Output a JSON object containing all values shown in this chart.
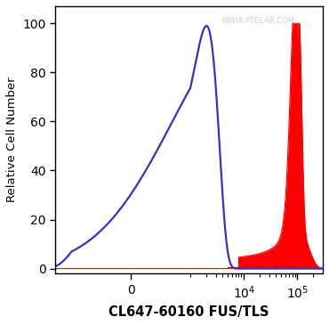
{
  "title": "",
  "xlabel": "CL647-60160 FUS/TLS",
  "ylabel": "Relative Cell Number",
  "ylim": [
    -2,
    107
  ],
  "yticks": [
    0,
    20,
    40,
    60,
    80,
    100
  ],
  "watermark": "WWW.PTGLAB.COM",
  "background_color": "#ffffff",
  "blue_color": "#3333cc",
  "red_color": "#ff0000",
  "red_fill_color": "#ff0000",
  "blue_linewidth": 1.6,
  "red_linewidth": 0.8,
  "symlog_linthresh": 1000,
  "xlim": [
    -2000,
    300000
  ]
}
